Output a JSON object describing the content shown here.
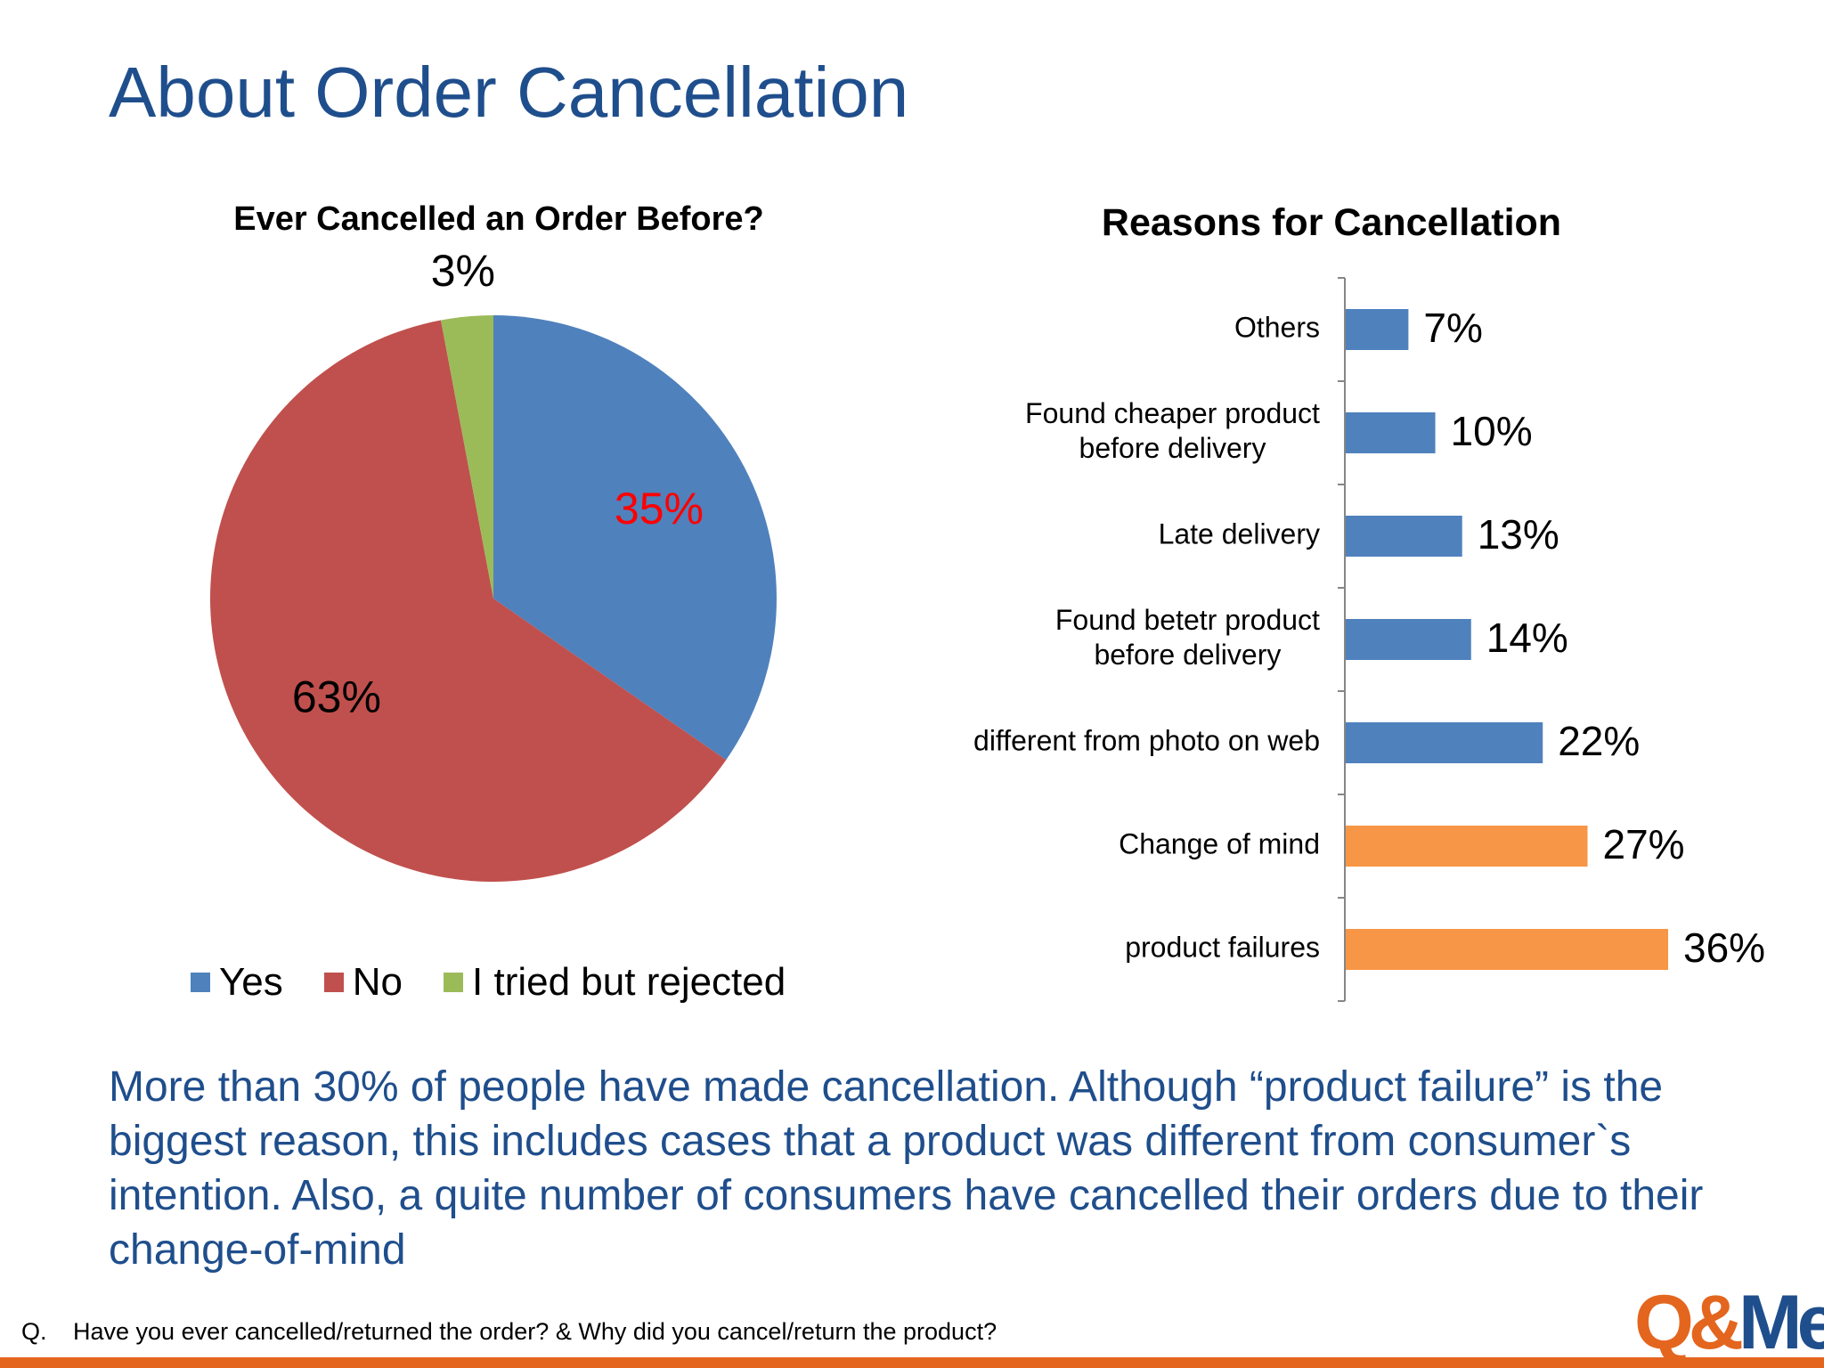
{
  "slide": {
    "title": "About Order Cancellation",
    "summary": "More than 30% of people have  made cancellation. Although “product failure” is the biggest reason, this includes cases that a product was different from consumer`s intention. Also, a quite number of consumers have cancelled their orders due to their change-of-mind",
    "footnote_prefix": "Q.",
    "footnote": "Have you ever cancelled/returned the order? & Why did you cancel/return the product?",
    "logo_part1": "Q&",
    "logo_part2": "Me",
    "accent_color": "#e4651e",
    "title_color": "#1f4e8c"
  },
  "chart_data": [
    {
      "type": "pie",
      "title": "Ever Cancelled an Order Before?",
      "categories": [
        "Yes",
        "No",
        "I tried but rejected"
      ],
      "values": [
        35,
        63,
        3
      ],
      "labels": [
        "35%",
        "63%",
        "3%"
      ],
      "colors": [
        "#4f81bd",
        "#c0504d",
        "#9bbb59"
      ],
      "label_colors": [
        "#ff0000",
        "#000000",
        "#000000"
      ],
      "legend": "bottom"
    },
    {
      "type": "bar",
      "orientation": "horizontal",
      "title": "Reasons for Cancellation",
      "categories": [
        "Others",
        "Found cheaper product before delivery",
        "Late delivery",
        "Found betetr product before delivery",
        "different from photo on web",
        "Change of mind",
        "product failures"
      ],
      "category_lines": [
        [
          "Others"
        ],
        [
          "Found cheaper product",
          "before delivery"
        ],
        [
          "Late delivery"
        ],
        [
          "Found betetr product",
          "before delivery"
        ],
        [
          "different from photo on web"
        ],
        [
          "Change of mind"
        ],
        [
          "product failures"
        ]
      ],
      "values": [
        7,
        10,
        13,
        14,
        22,
        27,
        36
      ],
      "labels": [
        "7%",
        "10%",
        "13%",
        "14%",
        "22%",
        "27%",
        "36%"
      ],
      "colors": [
        "#4f81bd",
        "#4f81bd",
        "#4f81bd",
        "#4f81bd",
        "#4f81bd",
        "#f79646",
        "#f79646"
      ],
      "xlim": [
        0,
        36
      ],
      "legend": "none"
    }
  ]
}
